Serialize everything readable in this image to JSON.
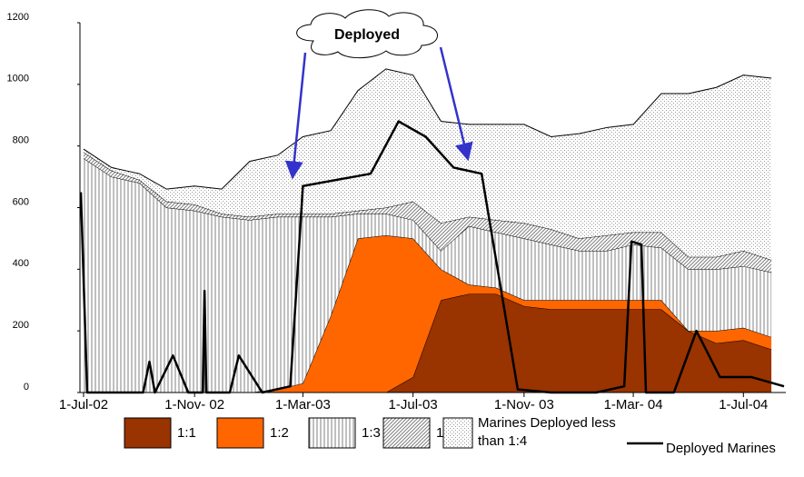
{
  "chart_data": {
    "type": "stacked-area",
    "annotation": "Deployed",
    "x": [
      "2002-07-01",
      "2002-08-01",
      "2002-09-01",
      "2002-10-01",
      "2002-11-01",
      "2002-12-01",
      "2003-01-01",
      "2003-02-01",
      "2003-03-01",
      "2003-04-01",
      "2003-05-01",
      "2003-06-01",
      "2003-07-01",
      "2003-08-01",
      "2003-09-01",
      "2003-10-01",
      "2003-11-01",
      "2003-12-01",
      "2004-01-01",
      "2004-02-01",
      "2004-03-01",
      "2004-04-01",
      "2004-05-01",
      "2004-06-01",
      "2004-07-01",
      "2004-08-01"
    ],
    "series": [
      {
        "name": "1:1",
        "color": "#993300",
        "pattern": "solid",
        "values": [
          0,
          0,
          0,
          0,
          0,
          0,
          0,
          0,
          0,
          0,
          0,
          0,
          50,
          300,
          320,
          320,
          280,
          270,
          270,
          270,
          270,
          270,
          200,
          160,
          170,
          140
        ]
      },
      {
        "name": "1:2",
        "color": "#ff6600",
        "pattern": "solid",
        "values": [
          0,
          0,
          0,
          0,
          0,
          0,
          0,
          10,
          30,
          250,
          500,
          510,
          450,
          100,
          30,
          20,
          20,
          30,
          30,
          30,
          30,
          30,
          0,
          40,
          40,
          40
        ]
      },
      {
        "name": "1:3",
        "color": "#808080",
        "pattern": "vertical",
        "values": [
          760,
          700,
          680,
          600,
          590,
          570,
          560,
          560,
          540,
          320,
          80,
          70,
          60,
          60,
          190,
          180,
          200,
          180,
          160,
          160,
          180,
          170,
          200,
          200,
          200,
          210
        ]
      },
      {
        "name": "1:4",
        "color": "#808080",
        "pattern": "diagonal",
        "values": [
          20,
          20,
          10,
          20,
          20,
          10,
          10,
          10,
          10,
          10,
          10,
          20,
          60,
          90,
          30,
          40,
          50,
          50,
          40,
          50,
          40,
          50,
          40,
          40,
          50,
          40
        ]
      },
      {
        "name": "Marines Deployed less than 1:4",
        "color": "#a0a0a0",
        "pattern": "dots",
        "values": [
          10,
          10,
          20,
          40,
          60,
          80,
          180,
          190,
          250,
          270,
          390,
          450,
          410,
          330,
          300,
          310,
          320,
          300,
          340,
          350,
          350,
          450,
          530,
          550,
          570,
          590
        ]
      },
      {
        "name": "Deployed Marines",
        "type": "line",
        "color": "#000000",
        "x": [
          "2002-06-28",
          "2002-07-05",
          "2002-09-05",
          "2002-09-12",
          "2002-09-18",
          "2002-09-28",
          "2002-10-08",
          "2002-10-25",
          "2002-11-10",
          "2002-11-12",
          "2002-11-14",
          "2002-12-10",
          "2002-12-20",
          "2003-01-15",
          "2003-02-15",
          "2003-03-01",
          "2003-05-15",
          "2003-06-15",
          "2003-07-15",
          "2003-08-15",
          "2003-09-15",
          "2003-10-25",
          "2003-12-01",
          "2004-01-20",
          "2004-02-20",
          "2004-02-28",
          "2004-03-10",
          "2004-03-15",
          "2004-04-15",
          "2004-05-10",
          "2004-06-05",
          "2004-07-10",
          "2004-08-15"
        ],
        "values": [
          650,
          0,
          0,
          100,
          0,
          60,
          120,
          0,
          0,
          330,
          0,
          0,
          120,
          0,
          20,
          670,
          710,
          880,
          830,
          730,
          710,
          10,
          0,
          0,
          20,
          490,
          480,
          0,
          0,
          200,
          50,
          50,
          20
        ]
      }
    ],
    "xlim": [
      "2002-06-27",
      "2004-08-17"
    ],
    "xticks": [
      {
        "value": "2002-07-01",
        "label": "1-Jul-02"
      },
      {
        "value": "2002-11-01",
        "label": "1-Nov- 02"
      },
      {
        "value": "2003-03-01",
        "label": "1-Mar-03"
      },
      {
        "value": "2003-07-01",
        "label": "1-Jul-03"
      },
      {
        "value": "2003-11-01",
        "label": "1-Nov- 03"
      },
      {
        "value": "2004-03-01",
        "label": "1-Mar- 04"
      },
      {
        "value": "2004-07-01",
        "label": "1-Jul-04"
      }
    ],
    "ylim": [
      0,
      1200
    ],
    "yticks": [
      0,
      200,
      400,
      600,
      800,
      1000,
      1200
    ],
    "grid": false
  }
}
